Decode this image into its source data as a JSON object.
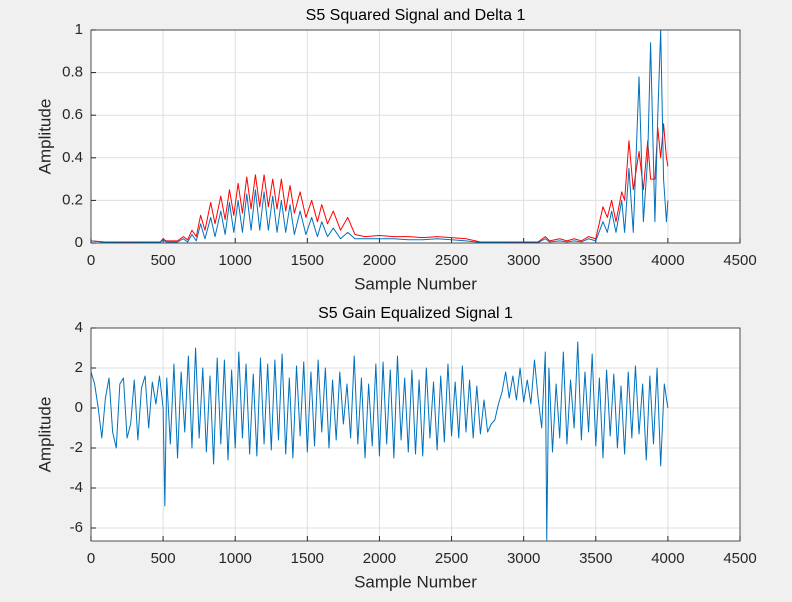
{
  "chart_data": [
    {
      "type": "line",
      "title": "S5 Squared Signal and Delta 1",
      "xlabel": "Sample Number",
      "ylabel": "Amplitude",
      "x": [
        0,
        100,
        200,
        300,
        400,
        480,
        500,
        520,
        600,
        640,
        670,
        700,
        730,
        760,
        790,
        830,
        860,
        900,
        930,
        960,
        990,
        1020,
        1050,
        1080,
        1110,
        1140,
        1170,
        1200,
        1230,
        1260,
        1290,
        1320,
        1350,
        1380,
        1410,
        1450,
        1490,
        1530,
        1570,
        1600,
        1640,
        1680,
        1730,
        1780,
        1830,
        1900,
        2000,
        2100,
        2200,
        2300,
        2400,
        2500,
        2600,
        2700,
        2800,
        2900,
        3000,
        3100,
        3150,
        3180,
        3250,
        3300,
        3350,
        3400,
        3450,
        3500,
        3550,
        3580,
        3610,
        3640,
        3680,
        3700,
        3730,
        3760,
        3800,
        3830,
        3860,
        3880,
        3910,
        3930,
        3950,
        3970,
        3990,
        4000
      ],
      "series": [
        {
          "color": "#ff0000",
          "values": [
            0.01,
            0.005,
            0.005,
            0.005,
            0.005,
            0.005,
            0.02,
            0.01,
            0.01,
            0.03,
            0.015,
            0.06,
            0.03,
            0.13,
            0.06,
            0.19,
            0.09,
            0.22,
            0.11,
            0.25,
            0.13,
            0.28,
            0.14,
            0.31,
            0.16,
            0.32,
            0.17,
            0.32,
            0.17,
            0.3,
            0.16,
            0.3,
            0.15,
            0.27,
            0.14,
            0.24,
            0.12,
            0.2,
            0.1,
            0.18,
            0.09,
            0.15,
            0.06,
            0.12,
            0.04,
            0.03,
            0.035,
            0.03,
            0.03,
            0.025,
            0.03,
            0.025,
            0.02,
            0.005,
            0.005,
            0.005,
            0.005,
            0.005,
            0.03,
            0.01,
            0.02,
            0.01,
            0.02,
            0.01,
            0.03,
            0.02,
            0.17,
            0.12,
            0.2,
            0.1,
            0.24,
            0.2,
            0.48,
            0.25,
            0.43,
            0.25,
            0.48,
            0.3,
            0.3,
            0.54,
            0.4,
            0.56,
            0.4,
            0.36
          ]
        },
        {
          "color": "#0072bd",
          "values": [
            0.01,
            0.003,
            0.002,
            0.002,
            0.003,
            0.003,
            0.015,
            0.005,
            0.005,
            0.02,
            0.005,
            0.04,
            0.01,
            0.09,
            0.02,
            0.12,
            0.03,
            0.15,
            0.04,
            0.19,
            0.05,
            0.2,
            0.05,
            0.23,
            0.06,
            0.25,
            0.06,
            0.24,
            0.06,
            0.22,
            0.05,
            0.2,
            0.05,
            0.18,
            0.04,
            0.15,
            0.04,
            0.12,
            0.03,
            0.1,
            0.03,
            0.07,
            0.02,
            0.05,
            0.02,
            0.02,
            0.02,
            0.02,
            0.015,
            0.015,
            0.02,
            0.015,
            0.01,
            0.003,
            0.003,
            0.002,
            0.002,
            0.002,
            0.02,
            0.005,
            0.01,
            0.005,
            0.01,
            0.005,
            0.02,
            0.01,
            0.1,
            0.05,
            0.15,
            0.05,
            0.2,
            0.05,
            0.35,
            0.05,
            0.78,
            0.1,
            0.4,
            0.94,
            0.1,
            0.6,
            1.0,
            0.3,
            0.1,
            0.2
          ]
        }
      ],
      "xlim": [
        0,
        4500
      ],
      "ylim": [
        0,
        1
      ],
      "xticks": [
        0,
        500,
        1000,
        1500,
        2000,
        2500,
        3000,
        3500,
        4000,
        4500
      ],
      "yticks": [
        0,
        0.2,
        0.4,
        0.6,
        0.8,
        1
      ],
      "grid": true
    },
    {
      "type": "line",
      "title": "S5 Gain Equalized Signal 1",
      "xlabel": "Sample Number",
      "ylabel": "Amplitude",
      "x": [
        0,
        25,
        50,
        75,
        100,
        125,
        150,
        175,
        200,
        225,
        250,
        275,
        300,
        325,
        350,
        375,
        400,
        425,
        450,
        475,
        500,
        512,
        525,
        550,
        575,
        600,
        625,
        650,
        675,
        700,
        725,
        750,
        775,
        800,
        825,
        850,
        875,
        900,
        925,
        950,
        975,
        1000,
        1025,
        1050,
        1075,
        1100,
        1125,
        1150,
        1175,
        1200,
        1225,
        1250,
        1275,
        1300,
        1325,
        1350,
        1375,
        1400,
        1425,
        1450,
        1475,
        1500,
        1525,
        1550,
        1575,
        1600,
        1625,
        1650,
        1675,
        1700,
        1725,
        1750,
        1775,
        1800,
        1825,
        1850,
        1875,
        1900,
        1925,
        1950,
        1975,
        2000,
        2025,
        2050,
        2075,
        2100,
        2125,
        2150,
        2175,
        2200,
        2225,
        2250,
        2275,
        2300,
        2325,
        2350,
        2375,
        2400,
        2425,
        2450,
        2475,
        2500,
        2525,
        2550,
        2575,
        2600,
        2625,
        2650,
        2675,
        2700,
        2725,
        2750,
        2775,
        2800,
        2825,
        2850,
        2875,
        2900,
        2925,
        2950,
        2975,
        3000,
        3025,
        3050,
        3075,
        3100,
        3125,
        3150,
        3160,
        3175,
        3200,
        3225,
        3250,
        3275,
        3300,
        3325,
        3350,
        3375,
        3400,
        3425,
        3450,
        3475,
        3500,
        3525,
        3550,
        3575,
        3600,
        3625,
        3650,
        3675,
        3700,
        3725,
        3750,
        3775,
        3800,
        3825,
        3850,
        3875,
        3900,
        3925,
        3950,
        3975,
        4000
      ],
      "series": [
        {
          "color": "#0072bd",
          "values": [
            1.8,
            1.2,
            0,
            -1.5,
            0.5,
            1.5,
            -1.2,
            -2,
            1.2,
            1.5,
            -1.5,
            -0.8,
            1.4,
            -1.6,
            1,
            1.6,
            -1,
            1.3,
            0.2,
            1.6,
            0,
            -4.9,
            1.5,
            -1.8,
            2.2,
            -2.5,
            1.8,
            -1.2,
            2.6,
            -2,
            3,
            -1.5,
            2,
            -2.2,
            1.6,
            -2.8,
            2.5,
            -1.8,
            2.4,
            -2.6,
            1.9,
            -2,
            2.8,
            -1.5,
            2.2,
            -2.3,
            1.7,
            -2.4,
            2.5,
            -1.8,
            2.2,
            -2.1,
            2.4,
            -1.6,
            2.7,
            -2.3,
            1.5,
            -2.5,
            2.1,
            -1.4,
            2.3,
            -2.2,
            1.8,
            -1.9,
            2.4,
            -1.2,
            2,
            -2,
            1.4,
            -1.6,
            1.8,
            -0.8,
            1.2,
            -1.5,
            2.6,
            -1.8,
            1.5,
            -2.5,
            1.2,
            -1.9,
            2.2,
            -2.4,
            2.3,
            -1.8,
            1.9,
            -2.5,
            2.6,
            -1.6,
            1.5,
            -2.2,
            1.9,
            -2.3,
            1.4,
            -2.4,
            2,
            -1.5,
            1.3,
            -2.1,
            1.6,
            -1.7,
            2.2,
            -1.4,
            1.3,
            -1.5,
            2.1,
            -1.2,
            1.4,
            -1.5,
            1.1,
            -1.3,
            0.4,
            -1.2,
            -0.8,
            -0.6,
            0.2,
            0.8,
            1.8,
            0.5,
            1.6,
            0.4,
            2,
            0.3,
            1.4,
            0.2,
            2.4,
            0.5,
            -1,
            2.8,
            -6.6,
            2,
            -2.2,
            1.2,
            -1.5,
            2.8,
            -1.8,
            1.4,
            -1,
            3.3,
            -1.6,
            1.8,
            -1.2,
            2.7,
            -1.9,
            1.5,
            -2.5,
            1.9,
            -1.4,
            1.7,
            -2,
            1.1,
            -2.3,
            1.8,
            -1.5,
            2.1,
            -1.3,
            1.2,
            -2.6,
            1.6,
            -1.8,
            2,
            -2.9,
            1.2,
            0
          ]
        }
      ],
      "xlim": [
        0,
        4500
      ],
      "ylim": [
        -6.65,
        4
      ],
      "xticks": [
        0,
        500,
        1000,
        1500,
        2000,
        2500,
        3000,
        3500,
        4000,
        4500
      ],
      "yticks": [
        -6,
        -4,
        -2,
        0,
        2,
        4
      ],
      "grid": true
    }
  ]
}
